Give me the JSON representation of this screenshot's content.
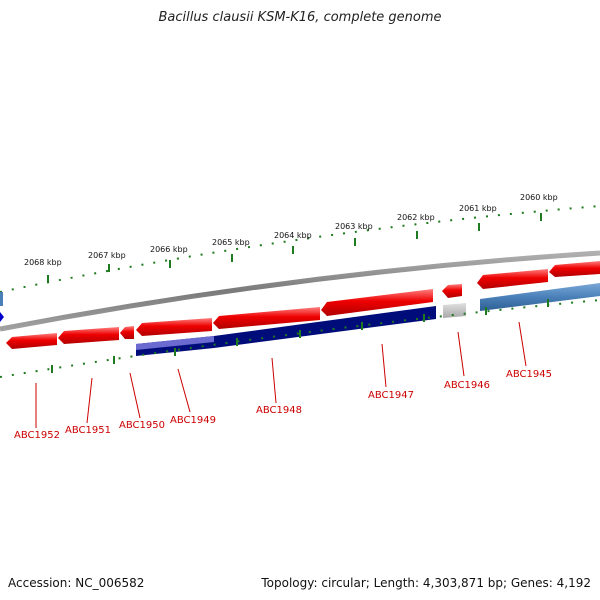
{
  "title": "Bacillus clausii KSM-K16, complete genome",
  "footer": {
    "accession_label": "Accession: NC_006582",
    "summary": "Topology: circular; Length: 4,303,871 bp; Genes: 4,192"
  },
  "colors": {
    "backbone": "#8a8a8a",
    "gene_forward": "#ee0000",
    "gene_reverse_band": "#000c7a",
    "gene_reverse_light": "#6a6ad0",
    "gene_steelblue": "#4a80b8",
    "gene_grey": "#b8b8b8",
    "tick": "#1e7a1e",
    "label": "#cc0000"
  },
  "kbp_labels": [
    "2068 kbp",
    "2067 kbp",
    "2066 kbp",
    "2065 kbp",
    "2064 kbp",
    "2063 kbp",
    "2062 kbp",
    "2061 kbp",
    "2060 kbp"
  ],
  "gene_labels": [
    "ABC1952",
    "ABC1951",
    "ABC1950",
    "ABC1949",
    "ABC1948",
    "ABC1947",
    "ABC1946",
    "ABC1945"
  ]
}
